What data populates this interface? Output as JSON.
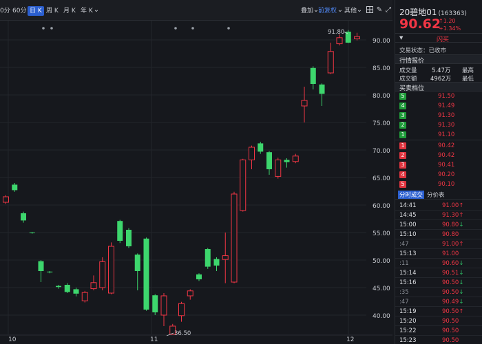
{
  "toolbar": {
    "items": [
      "0分",
      "60分",
      "日 K",
      "周 K",
      "月 K",
      "年 K"
    ],
    "active": "日 K",
    "overlay_label": "叠加",
    "adjust_label": "前复权",
    "other_label": "其他"
  },
  "chart": {
    "price_ticks": [
      "90.00",
      "85.00",
      "80.00",
      "75.00",
      "70.00",
      "65.00",
      "60.00",
      "55.00",
      "50.00",
      "45.00",
      "40.00"
    ],
    "date_labels": [
      "10",
      "11",
      "12"
    ],
    "high_label": "91.80",
    "low_label": "36.50",
    "colors": {
      "up": "#f23645",
      "down": "#3dd66d",
      "bg": "#16181d",
      "grid": "#23262c"
    }
  },
  "chart_data": {
    "type": "candlestick",
    "title": "",
    "ylim": [
      36,
      93
    ],
    "candles": [
      {
        "o": 60.5,
        "c": 61.5,
        "h": 61.8,
        "l": 60.2
      },
      {
        "o": 63.7,
        "c": 62.7,
        "h": 64.0,
        "l": 62.4
      },
      {
        "o": 58.5,
        "c": 57.2,
        "h": 58.8,
        "l": 56.8
      },
      {
        "o": 55.0,
        "c": 54.9,
        "h": 55.1,
        "l": 54.8
      },
      {
        "o": 49.8,
        "c": 48.0,
        "h": 50.0,
        "l": 46.0
      },
      {
        "o": 47.9,
        "c": 47.8,
        "h": 48.0,
        "l": 47.6
      },
      {
        "o": 45.3,
        "c": 45.1,
        "h": 45.5,
        "l": 44.8
      },
      {
        "o": 45.5,
        "c": 44.2,
        "h": 45.8,
        "l": 44.0
      },
      {
        "o": 44.7,
        "c": 43.9,
        "h": 45.0,
        "l": 43.4
      },
      {
        "o": 42.6,
        "c": 44.1,
        "h": 44.4,
        "l": 42.3
      },
      {
        "o": 44.8,
        "c": 45.9,
        "h": 47.2,
        "l": 44.5
      },
      {
        "o": 45.0,
        "c": 49.7,
        "h": 50.5,
        "l": 44.5
      },
      {
        "o": 44.0,
        "c": 52.5,
        "h": 53.2,
        "l": 43.8
      },
      {
        "o": 57.1,
        "c": 53.5,
        "h": 57.3,
        "l": 53.1
      },
      {
        "o": 55.5,
        "c": 52.5,
        "h": 55.8,
        "l": 52.2
      },
      {
        "o": 51.0,
        "c": 48.0,
        "h": 51.2,
        "l": 44.5
      },
      {
        "o": 53.9,
        "c": 41.0,
        "h": 54.1,
        "l": 40.8
      },
      {
        "o": 43.6,
        "c": 40.5,
        "h": 43.8,
        "l": 40.0
      },
      {
        "o": 40.0,
        "c": 43.5,
        "h": 44.0,
        "l": 38.0
      },
      {
        "o": 36.5,
        "c": 38.0,
        "h": 38.4,
        "l": 36.5
      },
      {
        "o": 39.9,
        "c": 42.1,
        "h": 42.4,
        "l": 38.8
      },
      {
        "o": 43.5,
        "c": 44.4,
        "h": 44.7,
        "l": 42.8
      },
      {
        "o": 47.4,
        "c": 46.5,
        "h": 47.6,
        "l": 46.2
      },
      {
        "o": 52.0,
        "c": 48.8,
        "h": 52.2,
        "l": 48.4
      },
      {
        "o": 50.2,
        "c": 49.0,
        "h": 50.5,
        "l": 48.0
      },
      {
        "o": 50.1,
        "c": 50.8,
        "h": 55.0,
        "l": 45.8
      },
      {
        "o": 46.0,
        "c": 62.0,
        "h": 62.4,
        "l": 45.8
      },
      {
        "o": 59.0,
        "c": 68.2,
        "h": 68.4,
        "l": 58.8
      },
      {
        "o": 68.2,
        "c": 70.5,
        "h": 70.8,
        "l": 66.5
      },
      {
        "o": 71.2,
        "c": 69.7,
        "h": 71.5,
        "l": 69.3
      },
      {
        "o": 69.6,
        "c": 66.5,
        "h": 69.8,
        "l": 65.5
      },
      {
        "o": 65.2,
        "c": 68.2,
        "h": 68.6,
        "l": 64.8
      },
      {
        "o": 68.2,
        "c": 67.8,
        "h": 68.5,
        "l": 66.8
      },
      {
        "o": 67.9,
        "c": 68.9,
        "h": 69.3,
        "l": 67.6
      },
      {
        "o": 78.0,
        "c": 79.0,
        "h": 81.5,
        "l": 75.0
      },
      {
        "o": 84.9,
        "c": 82.0,
        "h": 85.2,
        "l": 81.0
      },
      {
        "o": 81.9,
        "c": 80.2,
        "h": 82.1,
        "l": 78.0
      },
      {
        "o": 84.0,
        "c": 87.9,
        "h": 89.5,
        "l": 83.8
      },
      {
        "o": 89.3,
        "c": 90.4,
        "h": 91.0,
        "l": 89.0
      },
      {
        "o": 91.5,
        "c": 89.5,
        "h": 91.8,
        "l": 89.4
      },
      {
        "o": 90.2,
        "c": 90.6,
        "h": 91.3,
        "l": 89.9
      }
    ]
  },
  "quote": {
    "name": "20碧地01",
    "code": "(163363)",
    "price": "90.62",
    "change": "1.20",
    "change_pct": "+1.34%",
    "flash_label": "闪买",
    "trade_status": "交易状态：已收市",
    "section_market": "行情报价",
    "volume_label": "成交量",
    "volume_value": "5.47万",
    "high_label": "最高",
    "amount_label": "成交额",
    "amount_value": "4962万",
    "low_label": "最低",
    "section_book": "买卖档位"
  },
  "order_book": {
    "asks": [
      {
        "level": "5",
        "price": "91.50"
      },
      {
        "level": "4",
        "price": "91.49"
      },
      {
        "level": "3",
        "price": "91.30"
      },
      {
        "level": "2",
        "price": "91.30"
      },
      {
        "level": "1",
        "price": "91.10"
      }
    ],
    "bids": [
      {
        "level": "1",
        "price": "90.42"
      },
      {
        "level": "2",
        "price": "90.42"
      },
      {
        "level": "3",
        "price": "90.41"
      },
      {
        "level": "4",
        "price": "90.20"
      },
      {
        "level": "5",
        "price": "90.10"
      }
    ]
  },
  "trades_tabs": [
    "分时成交",
    "分价表"
  ],
  "trades": [
    {
      "time": "14:41",
      "price": "91.00",
      "dir": "up"
    },
    {
      "time": "14:45",
      "price": "91.30",
      "dir": "up"
    },
    {
      "time": "15:00",
      "price": "90.80",
      "dir": "down"
    },
    {
      "time": "15:10",
      "price": "90.80",
      "dir": ""
    },
    {
      "time": ":47",
      "price": "91.00",
      "dir": "up"
    },
    {
      "time": "15:13",
      "price": "91.00",
      "dir": ""
    },
    {
      "time": ":11",
      "price": "90.60",
      "dir": "down"
    },
    {
      "time": "15:14",
      "price": "90.51",
      "dir": "down"
    },
    {
      "time": "15:16",
      "price": "90.50",
      "dir": "down"
    },
    {
      "time": ":35",
      "price": "90.50",
      "dir": "down"
    },
    {
      "time": ":47",
      "price": "90.49",
      "dir": "down"
    },
    {
      "time": "15:19",
      "price": "90.50",
      "dir": "up"
    },
    {
      "time": "15:20",
      "price": "90.50",
      "dir": ""
    },
    {
      "time": "15:22",
      "price": "90.50",
      "dir": ""
    },
    {
      "time": "15:23",
      "price": "90.50",
      "dir": ""
    }
  ]
}
